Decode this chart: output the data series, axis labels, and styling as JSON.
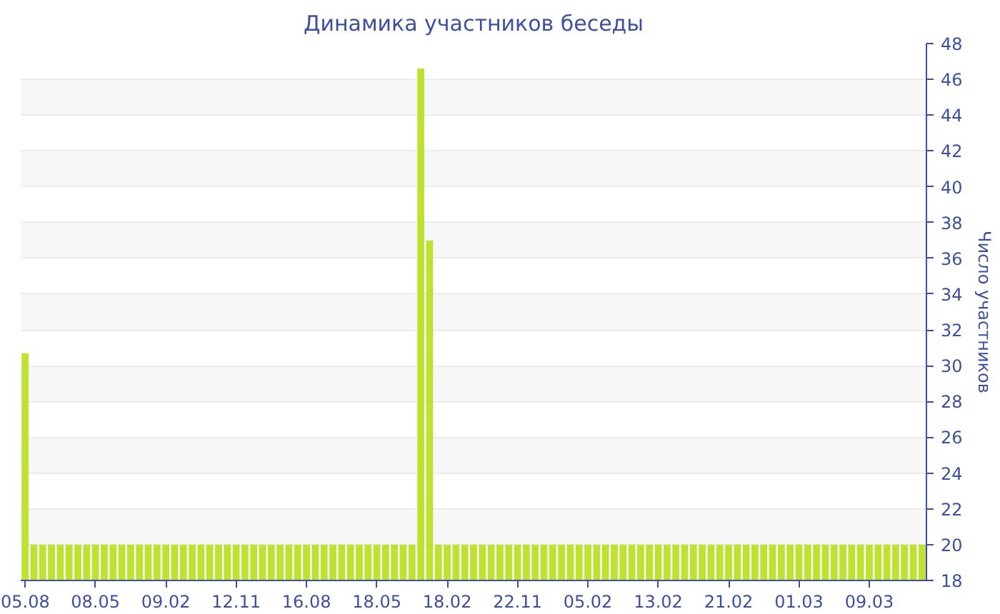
{
  "chart_data": {
    "type": "bar",
    "title": "Динамика участников беседы",
    "ylabel": "Число участников",
    "categories": [
      "05.08",
      null,
      null,
      null,
      null,
      null,
      null,
      null,
      "08.05",
      null,
      null,
      null,
      null,
      null,
      null,
      null,
      "09.02",
      null,
      null,
      null,
      null,
      null,
      null,
      null,
      "12.11",
      null,
      null,
      null,
      null,
      null,
      null,
      null,
      "16.08",
      null,
      null,
      null,
      null,
      null,
      null,
      null,
      "18.05",
      null,
      null,
      null,
      null,
      null,
      null,
      null,
      "18.02",
      null,
      null,
      null,
      null,
      null,
      null,
      null,
      "22.11",
      null,
      null,
      null,
      null,
      null,
      null,
      null,
      "05.02",
      null,
      null,
      null,
      null,
      null,
      null,
      null,
      "13.02",
      null,
      null,
      null,
      null,
      null,
      null,
      null,
      "21.02",
      null,
      null,
      null,
      null,
      null,
      null,
      null,
      "01.03",
      null,
      null,
      null,
      null,
      null,
      null,
      null,
      "09.03",
      null,
      null,
      null,
      null,
      null,
      null
    ],
    "values": [
      30.7,
      20,
      20,
      20,
      20,
      20,
      20,
      20,
      20,
      20,
      20,
      20,
      20,
      20,
      20,
      20,
      20,
      20,
      20,
      20,
      20,
      20,
      20,
      20,
      20,
      20,
      20,
      20,
      20,
      20,
      20,
      20,
      20,
      20,
      20,
      20,
      20,
      20,
      20,
      20,
      20,
      20,
      20,
      20,
      20,
      46.6,
      37,
      20,
      20,
      20,
      20,
      20,
      20,
      20,
      20,
      20,
      20,
      20,
      20,
      20,
      20,
      20,
      20,
      20,
      20,
      20,
      20,
      20,
      20,
      20,
      20,
      20,
      20,
      20,
      20,
      20,
      20,
      20,
      20,
      20,
      20,
      20,
      20,
      20,
      20,
      20,
      20,
      20,
      20,
      20,
      20,
      20,
      20,
      20,
      20,
      20,
      20,
      20,
      20,
      20,
      20,
      20,
      20
    ],
    "color": "#bde232",
    "ylim": [
      18,
      48
    ],
    "yticks": [
      18,
      20,
      22,
      24,
      26,
      28,
      30,
      32,
      34,
      36,
      38,
      40,
      42,
      44,
      46,
      48
    ],
    "grid": "y"
  }
}
